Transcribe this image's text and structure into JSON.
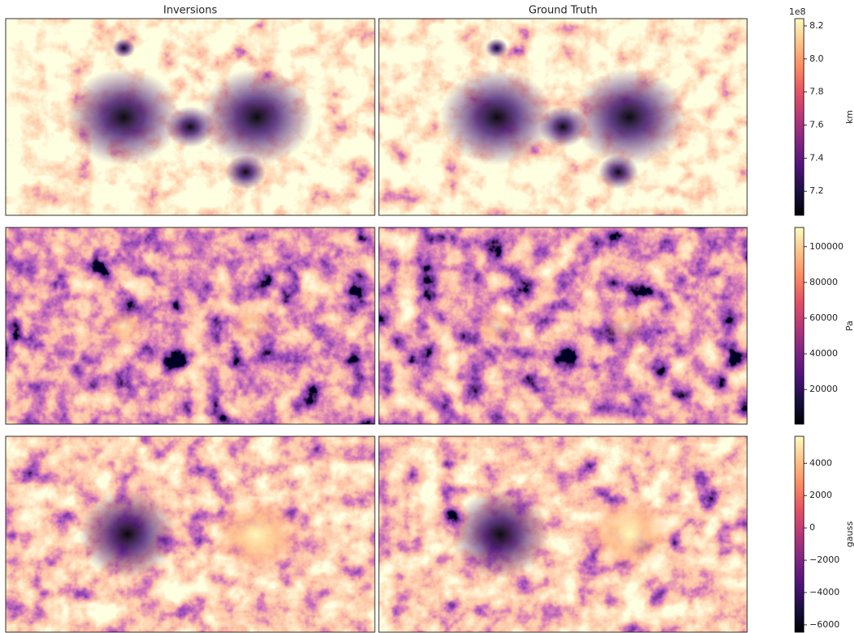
{
  "chart_data": [
    {
      "type": "heatmap",
      "titles": [
        "Inversions",
        "Ground Truth"
      ],
      "colormap": "magma",
      "colorbar_label": "km",
      "offset_label": "1e8",
      "ylim": [
        7.054,
        8.244
      ],
      "yticks": [
        7.2,
        7.4,
        7.6,
        7.8,
        {
          "value": 8.0,
          "label": "8.0"
        },
        8.2
      ]
    },
    {
      "type": "heatmap",
      "colormap": "magma",
      "colorbar_label": "Pa",
      "ylim": [
        600,
        110800
      ],
      "yticks": [
        20000,
        40000,
        60000,
        80000,
        100000
      ]
    },
    {
      "type": "heatmap",
      "colormap": "magma",
      "colorbar_label": "gauss",
      "ylim": [
        -6455,
        5667
      ],
      "yticks": [
        {
          "value": -6000,
          "label": "−6000"
        },
        {
          "value": -4000,
          "label": "−4000"
        },
        {
          "value": -2000,
          "label": "−2000"
        },
        0,
        2000,
        4000
      ]
    }
  ]
}
